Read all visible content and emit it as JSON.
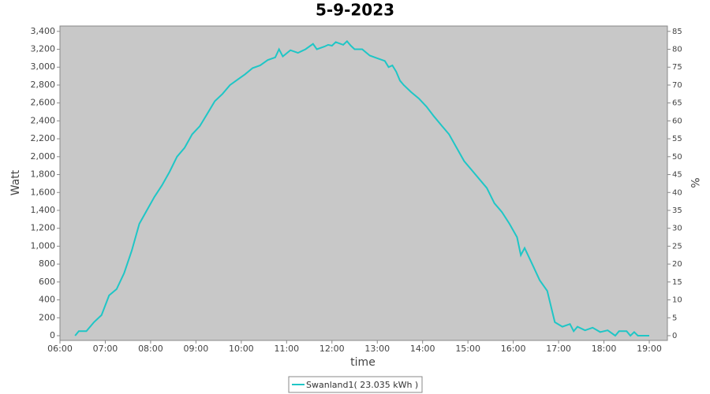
{
  "chart_data": {
    "type": "line",
    "title": "5-9-2023",
    "x_label": "time",
    "y_label": "Watt",
    "y2_label": "%",
    "x": [
      "06:20",
      "06:25",
      "06:35",
      "06:45",
      "06:55",
      "07:05",
      "07:15",
      "07:25",
      "07:35",
      "07:45",
      "07:55",
      "08:05",
      "08:15",
      "08:25",
      "08:35",
      "08:45",
      "08:55",
      "09:05",
      "09:15",
      "09:25",
      "09:35",
      "09:45",
      "09:55",
      "10:05",
      "10:15",
      "10:25",
      "10:35",
      "10:45",
      "10:50",
      "10:55",
      "11:05",
      "11:15",
      "11:25",
      "11:35",
      "11:40",
      "11:50",
      "11:55",
      "12:00",
      "12:05",
      "12:15",
      "12:20",
      "12:25",
      "12:30",
      "12:40",
      "12:50",
      "13:00",
      "13:10",
      "13:15",
      "13:20",
      "13:25",
      "13:30",
      "13:35",
      "13:45",
      "13:55",
      "14:05",
      "14:15",
      "14:25",
      "14:35",
      "14:45",
      "14:55",
      "15:05",
      "15:15",
      "15:25",
      "15:35",
      "15:45",
      "15:55",
      "16:05",
      "16:10",
      "16:15",
      "16:25",
      "16:35",
      "16:45",
      "16:55",
      "17:05",
      "17:15",
      "17:20",
      "17:25",
      "17:35",
      "17:45",
      "17:55",
      "18:05",
      "18:15",
      "18:20",
      "18:30",
      "18:35",
      "18:40",
      "18:45",
      "19:00"
    ],
    "series": [
      {
        "name": "Swanland1( 23.035 kWh )",
        "color": "#1fc6c6",
        "values": [
          0,
          50,
          50,
          150,
          230,
          450,
          520,
          700,
          950,
          1250,
          1400,
          1550,
          1680,
          1830,
          2000,
          2100,
          2250,
          2340,
          2480,
          2620,
          2700,
          2800,
          2860,
          2920,
          2990,
          3020,
          3080,
          3110,
          3200,
          3120,
          3190,
          3160,
          3200,
          3260,
          3200,
          3230,
          3250,
          3240,
          3280,
          3250,
          3290,
          3240,
          3200,
          3200,
          3130,
          3100,
          3070,
          3000,
          3020,
          2950,
          2850,
          2800,
          2720,
          2650,
          2560,
          2450,
          2350,
          2250,
          2100,
          1950,
          1850,
          1750,
          1650,
          1480,
          1380,
          1250,
          1100,
          900,
          980,
          800,
          620,
          500,
          150,
          100,
          130,
          50,
          100,
          60,
          90,
          40,
          60,
          0,
          50,
          50,
          0,
          40,
          0,
          0
        ]
      }
    ],
    "xlim": [
      "06:00",
      "19:24"
    ],
    "xticks": [
      "06:00",
      "07:00",
      "08:00",
      "09:00",
      "10:00",
      "11:00",
      "12:00",
      "13:00",
      "14:00",
      "15:00",
      "16:00",
      "17:00",
      "18:00",
      "19:00"
    ],
    "ylim": [
      -53,
      3460
    ],
    "yticks": [
      0,
      200,
      400,
      600,
      800,
      {
        "value": 1000,
        "label": "1,000"
      },
      {
        "value": 1200,
        "label": "1,200"
      },
      {
        "value": 1400,
        "label": "1,400"
      },
      {
        "value": 1600,
        "label": "1,600"
      },
      {
        "value": 1800,
        "label": "1,800"
      },
      {
        "value": 2000,
        "label": "2,000"
      },
      {
        "value": 2200,
        "label": "2,200"
      },
      {
        "value": 2400,
        "label": "2,400"
      },
      {
        "value": 2600,
        "label": "2,600"
      },
      {
        "value": 2800,
        "label": "2,800"
      },
      {
        "value": 3000,
        "label": "3,000"
      },
      {
        "value": 3200,
        "label": "3,200"
      },
      {
        "value": 3400,
        "label": "3,400"
      }
    ],
    "y2lim": [
      -1.325,
      86.5
    ],
    "y2ticks": [
      0,
      5,
      10,
      15,
      20,
      25,
      30,
      35,
      40,
      45,
      50,
      55,
      60,
      65,
      70,
      75,
      80,
      85
    ],
    "grid": false,
    "plot_background": "#c8c8c8",
    "legend": "bottom"
  }
}
